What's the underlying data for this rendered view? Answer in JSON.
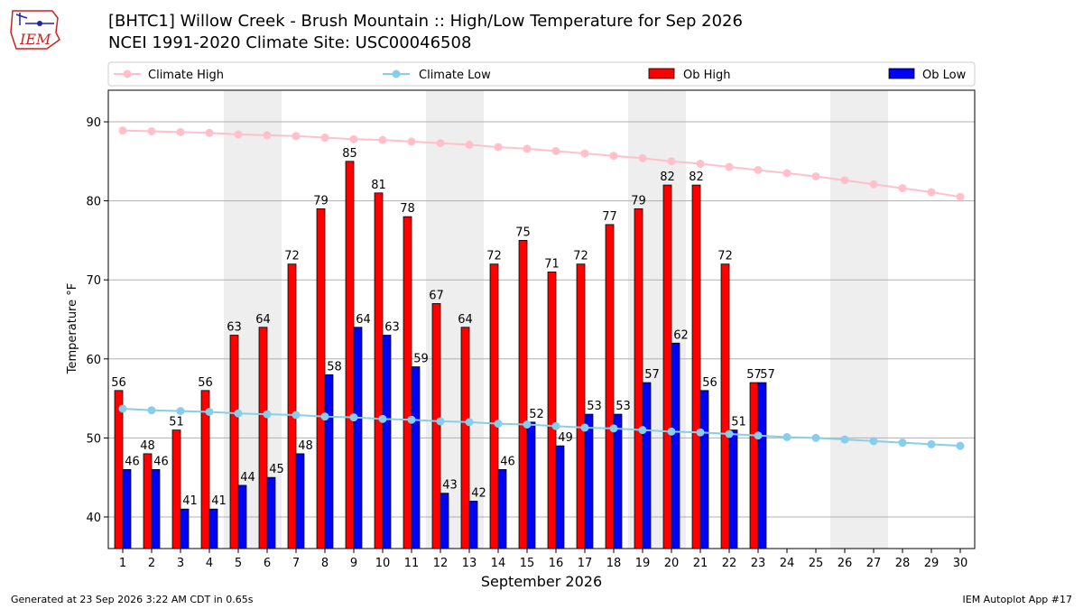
{
  "header": {
    "title_line1": "[BHTC1] Willow Creek - Brush Mountain :: High/Low Temperature for Sep 2026",
    "title_line2": "NCEI 1991-2020 Climate Site: USC00046508",
    "logo_text": "IEM"
  },
  "footer": {
    "generated": "Generated at 23 Sep 2026 3:22 AM CDT in 0.65s",
    "app": "IEM Autoplot App #17"
  },
  "colors": {
    "ob_high": "#ff0000",
    "ob_low": "#0000ff",
    "climate_high": "#ffc0cb",
    "climate_low": "#87ceeb",
    "weekend_band": "#eeeeee",
    "grid": "#b0b0b0",
    "logo": "#cc2222"
  },
  "chart_data": {
    "type": "bar",
    "xlabel": "September 2026",
    "ylabel": "Temperature °F",
    "ylim": [
      36,
      94
    ],
    "yticks": [
      40,
      50,
      60,
      70,
      80,
      90
    ],
    "grid": "horizontal",
    "legend_position": "top",
    "shaded_weekends": [
      [
        5,
        6
      ],
      [
        12,
        13
      ],
      [
        19,
        20
      ],
      [
        26,
        27
      ]
    ],
    "categories": [
      1,
      2,
      3,
      4,
      5,
      6,
      7,
      8,
      9,
      10,
      11,
      12,
      13,
      14,
      15,
      16,
      17,
      18,
      19,
      20,
      21,
      22,
      23,
      24,
      25,
      26,
      27,
      28,
      29,
      30
    ],
    "series": [
      {
        "name": "Climate High",
        "kind": "line",
        "values": [
          88.9,
          88.8,
          88.7,
          88.6,
          88.4,
          88.3,
          88.2,
          88.0,
          87.8,
          87.7,
          87.5,
          87.3,
          87.1,
          86.8,
          86.6,
          86.3,
          86.0,
          85.7,
          85.4,
          85.0,
          84.7,
          84.3,
          83.9,
          83.5,
          83.1,
          82.6,
          82.1,
          81.6,
          81.1,
          80.5
        ]
      },
      {
        "name": "Climate Low",
        "kind": "line",
        "values": [
          53.7,
          53.5,
          53.4,
          53.3,
          53.1,
          53.0,
          52.9,
          52.7,
          52.6,
          52.4,
          52.3,
          52.1,
          52.0,
          51.8,
          51.7,
          51.5,
          51.3,
          51.2,
          51.0,
          50.8,
          50.7,
          50.5,
          50.3,
          50.1,
          50.0,
          49.8,
          49.6,
          49.4,
          49.2,
          49.0
        ]
      },
      {
        "name": "Ob High",
        "kind": "bar",
        "values": [
          56,
          48,
          51,
          56,
          63,
          64,
          72,
          79,
          85,
          81,
          78,
          67,
          64,
          72,
          75,
          71,
          72,
          77,
          79,
          82,
          82,
          72,
          57,
          null,
          null,
          null,
          null,
          null,
          null,
          null
        ]
      },
      {
        "name": "Ob Low",
        "kind": "bar",
        "values": [
          46,
          46,
          41,
          41,
          44,
          45,
          48,
          58,
          64,
          63,
          59,
          43,
          42,
          46,
          52,
          49,
          53,
          53,
          57,
          62,
          56,
          51,
          57,
          null,
          null,
          null,
          null,
          null,
          null,
          null
        ]
      }
    ]
  }
}
